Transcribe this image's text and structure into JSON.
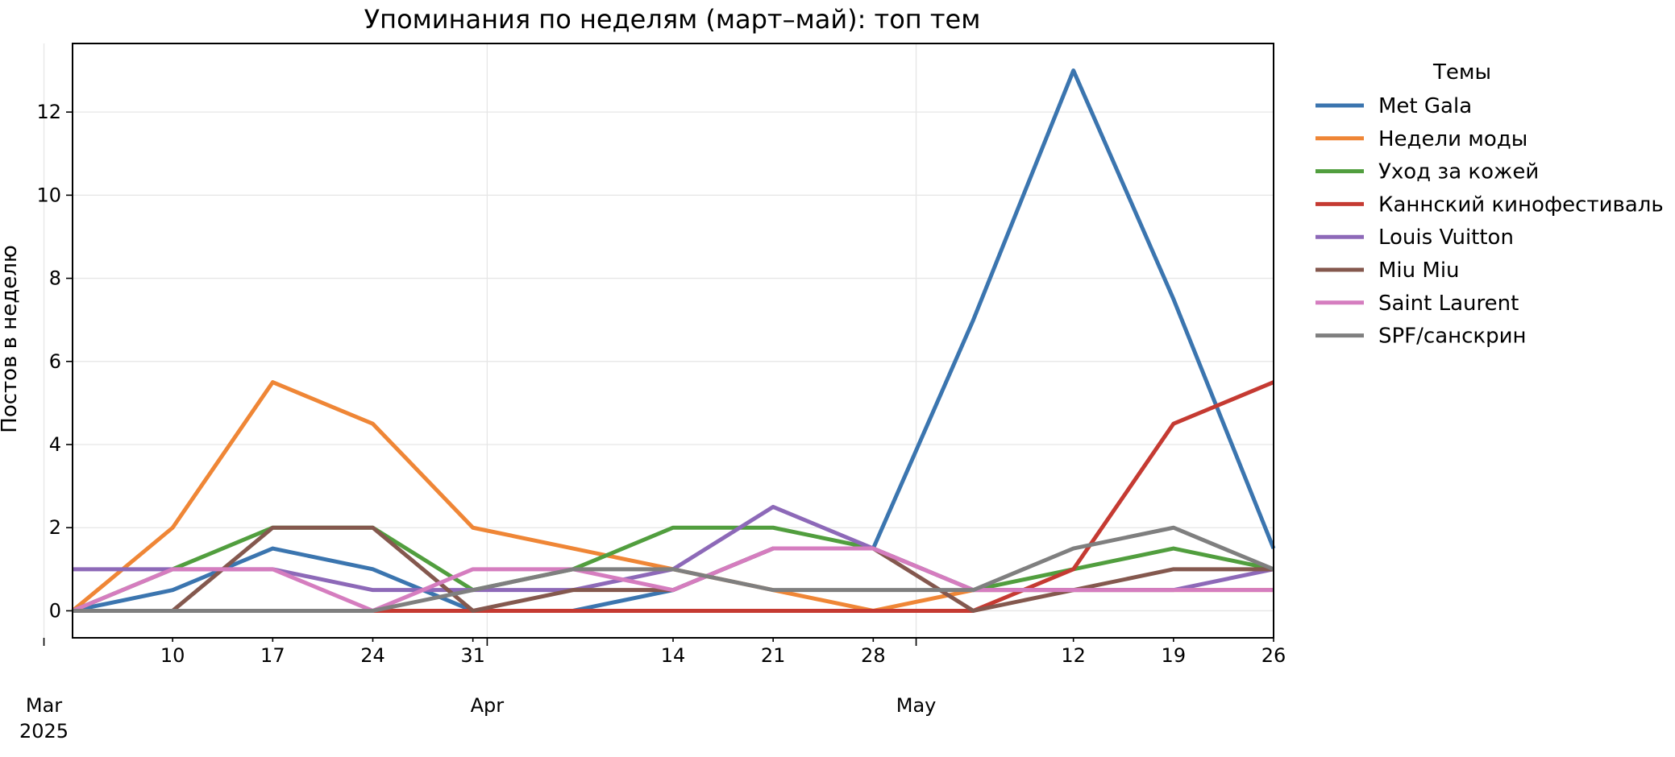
{
  "chart_data": {
    "type": "line",
    "title": "Упоминания по неделям (март–май): топ тем",
    "xlabel": "",
    "ylabel": "Постов в неделю",
    "x": [
      "2025-03-03",
      "2025-03-10",
      "2025-03-17",
      "2025-03-24",
      "2025-03-31",
      "2025-04-07",
      "2025-04-14",
      "2025-04-21",
      "2025-04-28",
      "2025-05-05",
      "2025-05-12",
      "2025-05-19",
      "2025-05-26"
    ],
    "xlim": [
      "2025-03-03",
      "2025-05-26"
    ],
    "ylim": [
      -0.65,
      13.65
    ],
    "y_ticks": [
      0,
      2,
      4,
      6,
      8,
      10,
      12
    ],
    "x_minor_ticks": [
      {
        "date": "2025-03-10",
        "label": "10"
      },
      {
        "date": "2025-03-17",
        "label": "17"
      },
      {
        "date": "2025-03-24",
        "label": "24"
      },
      {
        "date": "2025-03-31",
        "label": "31"
      },
      {
        "date": "2025-04-14",
        "label": "14"
      },
      {
        "date": "2025-04-21",
        "label": "21"
      },
      {
        "date": "2025-04-28",
        "label": "28"
      },
      {
        "date": "2025-05-12",
        "label": "12"
      },
      {
        "date": "2025-05-19",
        "label": "19"
      },
      {
        "date": "2025-05-26",
        "label": "26"
      }
    ],
    "x_major_ticks": [
      {
        "date": "2025-03-01",
        "label": "Mar",
        "sublabel": "2025"
      },
      {
        "date": "2025-04-01",
        "label": "Apr",
        "sublabel": ""
      },
      {
        "date": "2025-05-01",
        "label": "May",
        "sublabel": ""
      }
    ],
    "grid": true,
    "legend": {
      "title": "Темы",
      "placement": "outside-right-top"
    },
    "series": [
      {
        "name": "Met Gala",
        "color": "#3b75af",
        "values": [
          0,
          0.5,
          1.5,
          1,
          0,
          0,
          0.5,
          1.5,
          1.5,
          7,
          13,
          7.5,
          1.5
        ]
      },
      {
        "name": "Недели моды",
        "color": "#ef8636",
        "values": [
          0,
          2,
          5.5,
          4.5,
          2,
          1.5,
          1,
          0.5,
          0,
          0.5,
          0.5,
          0.5,
          0.5
        ]
      },
      {
        "name": "Уход за кожей",
        "color": "#519e3e",
        "values": [
          0,
          1,
          2,
          2,
          0.5,
          1,
          2,
          2,
          1.5,
          0.5,
          1,
          1.5,
          1
        ]
      },
      {
        "name": "Каннский кинофестиваль",
        "color": "#c53a32",
        "values": [
          0,
          0,
          0,
          0,
          0,
          0,
          0,
          0,
          0,
          0,
          1,
          4.5,
          5.5
        ]
      },
      {
        "name": "Louis Vuitton",
        "color": "#8d69b8",
        "values": [
          1,
          1,
          1,
          0.5,
          0.5,
          0.5,
          1,
          2.5,
          1.5,
          0.5,
          0.5,
          0.5,
          1
        ]
      },
      {
        "name": "Miu Miu",
        "color": "#84584e",
        "values": [
          0,
          0,
          2,
          2,
          0,
          0.5,
          0.5,
          1.5,
          1.5,
          0,
          0.5,
          1,
          1
        ]
      },
      {
        "name": "Saint Laurent",
        "color": "#d57dbf",
        "values": [
          0,
          1,
          1,
          0,
          1,
          1,
          0.5,
          1.5,
          1.5,
          0.5,
          0.5,
          0.5,
          0.5
        ]
      },
      {
        "name": "SPF/санскрин",
        "color": "#7f7f7f",
        "values": [
          0,
          0,
          0,
          0,
          0.5,
          1,
          1,
          0.5,
          0.5,
          0.5,
          1.5,
          2,
          1
        ]
      }
    ]
  }
}
